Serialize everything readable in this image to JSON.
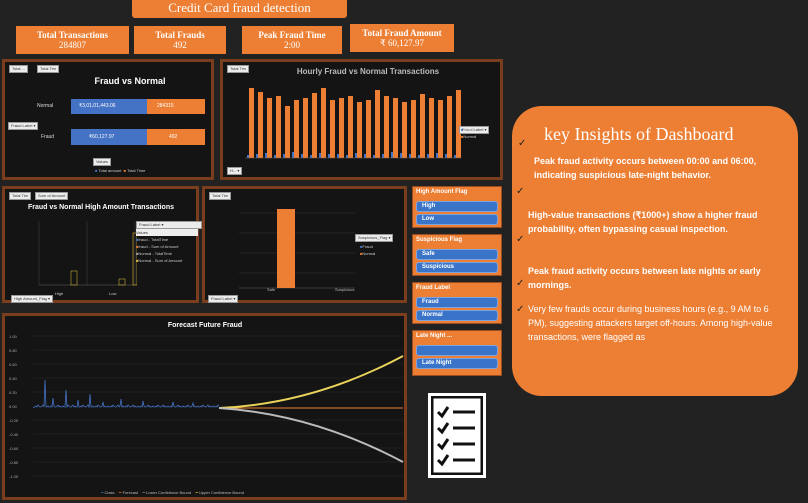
{
  "header": {
    "title": "Credit Card fraud detection"
  },
  "kpis": [
    {
      "label": "Total Transactions",
      "value": "284807"
    },
    {
      "label": "Total Frauds",
      "value": "492"
    },
    {
      "label": "Peak Fraud Time",
      "value": "2:00"
    },
    {
      "label": "Total Fraud Amount",
      "value": "₹ 60,127.97"
    }
  ],
  "fraud_vs_normal": {
    "title": "Fraud vs Normal",
    "chips": [
      "Total ...",
      "Total Tim"
    ],
    "filter_label": "Fraud Label",
    "values_chip": "Values",
    "legend": [
      "Total amount",
      "Total Time"
    ],
    "categories": [
      "Normal",
      "Fraud"
    ],
    "amount_labels": [
      "₹3,01,01,443.06",
      "₹60,127.97"
    ],
    "time_labels": [
      "284315",
      "492"
    ]
  },
  "hourly": {
    "title": "Hourly Fraud vs Normal Transactions",
    "chip": "Total Tim",
    "filter_chip": "Fraud Label",
    "legend": [
      "Fraud",
      "Normal"
    ],
    "axis_chip": "H..."
  },
  "high_amount": {
    "title": "Fraud vs Normal High Amount Transactions",
    "chips": [
      "Total Tim",
      "Sum of Amount"
    ],
    "filter_chip": "Fraud Label",
    "values_header": "Values",
    "legend": [
      "fraud - TotalTime",
      "fraud - Sum of Amount",
      "Normal - TotalTime",
      "Normal - Sum of Amount"
    ],
    "categories": [
      "High",
      "Low"
    ],
    "bottom_chip": "High Amount_Flag"
  },
  "suspicious": {
    "chip": "Total Tim",
    "filter_chip": "Suspicious_Flag",
    "legend": [
      "Fraud",
      "Normal"
    ],
    "categories": [
      "Safe",
      "Suspicious"
    ],
    "bottom_chip": "Fraud Label"
  },
  "slicers": [
    {
      "title": "High Amount Flag",
      "items": [
        "High",
        "Low"
      ]
    },
    {
      "title": "Suspicious Flag",
      "items": [
        "Safe",
        "Suspicious"
      ]
    },
    {
      "title": "Fraud Label",
      "items": [
        "Fraud",
        "Normal"
      ]
    },
    {
      "title": "Late Night ...",
      "items": [
        "",
        "Late Night"
      ]
    }
  ],
  "forecast": {
    "title": "Forecast Future Fraud",
    "y_ticks": [
      "1.00",
      "0.80",
      "0.60",
      "0.40",
      "0.20",
      "0.00",
      "-0.20",
      "-0.40",
      "-0.60",
      "-0.80",
      "-1.00"
    ],
    "legend": [
      "Class",
      "Forecast",
      "Lower Confidence Bound",
      "Upper Confidence Bound"
    ]
  },
  "insights": {
    "title": "key Insights of Dashboard",
    "p1": "Peak fraud activity occurs between 00:00 and 06:00, indicating suspicious late-night behavior.",
    "p2": "High-value transactions (₹1000+) show a higher fraud probability, often bypassing casual inspection.",
    "p3": "Peak fraud activity occurs between late nights or early mornings.",
    "p4": "Very few frauds occur during business hours (e.g., 9 AM to 6 PM), suggesting attackers target off-hours. Among high-value transactions, were flagged as"
  },
  "colors": {
    "accent": "#ec7f34",
    "panel": "#141414",
    "border": "#7a3d1d",
    "blue": "#4472c4",
    "yellow": "#e5c232"
  },
  "icon": "checklist-icon"
}
